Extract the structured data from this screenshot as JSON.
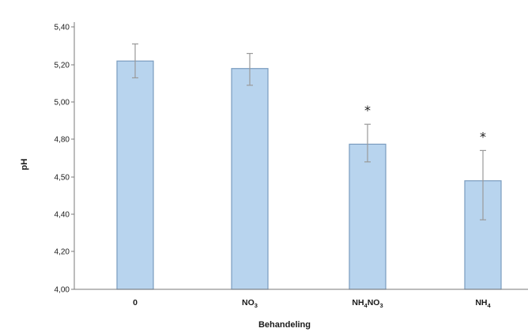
{
  "chart_data": {
    "type": "bar",
    "categories": [
      {
        "base": "0",
        "sub": ""
      },
      {
        "base": "NO",
        "sub": "3"
      },
      {
        "base": "NH",
        "sub": "4",
        "base2": "NO",
        "sub2": "3"
      },
      {
        "base": "NH",
        "sub": "4"
      }
    ],
    "values": [
      5.22,
      5.18,
      4.76,
      4.49
    ],
    "error_upper": [
      5.31,
      5.26,
      4.88,
      4.71
    ],
    "error_lower": [
      5.13,
      5.09,
      4.62,
      4.37
    ],
    "significance": [
      "",
      "",
      "*",
      "*"
    ],
    "y_ticks": [
      4.0,
      4.2,
      4.4,
      4.5,
      4.8,
      5.0,
      5.2,
      5.4
    ],
    "y_tick_labels": [
      "4,00",
      "4,20",
      "4,40",
      "4,50",
      "4,80",
      "5,00",
      "5,20",
      "5,40"
    ],
    "ylim": [
      4.0,
      5.4
    ],
    "xlabel": "Behandeling",
    "ylabel": "pH",
    "grid": false,
    "colors": {
      "bar_fill": "#b8d4ee",
      "bar_stroke": "#7a9cbf",
      "axis": "#7a7a7a",
      "error": "#9a9a9a"
    }
  }
}
